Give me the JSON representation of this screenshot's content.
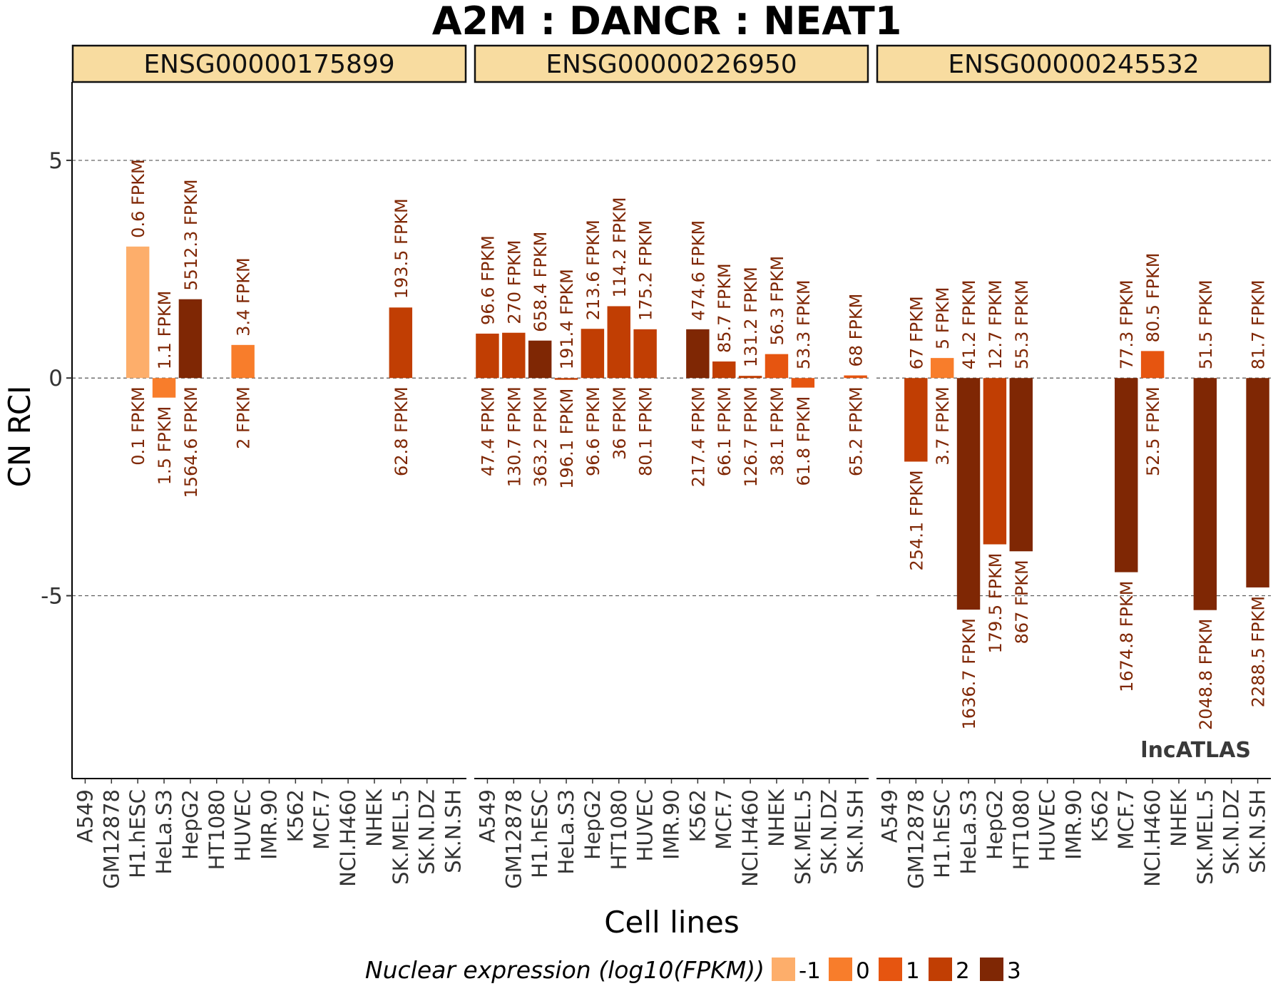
{
  "chart_data": {
    "type": "bar",
    "title": "A2M : DANCR : NEAT1",
    "xlabel": "Cell lines",
    "ylabel": "CN RCI",
    "ylim": [
      -9.2,
      6.8
    ],
    "yticks": [
      5,
      0,
      -5
    ],
    "ytick_labels": [
      "5",
      "0",
      "-5"
    ],
    "grid": "horizontal dashed at y = 5, 0, -5",
    "categories": [
      "A549",
      "GM12878",
      "H1.hESC",
      "HeLa.S3",
      "HepG2",
      "HT1080",
      "HUVEC",
      "IMR.90",
      "K562",
      "MCF.7",
      "NCI.H460",
      "NHEK",
      "SK.MEL.5",
      "SK.N.DZ",
      "SK.N.SH"
    ],
    "watermark": "lncATLAS",
    "legend": {
      "title": "Nuclear expression (log10(FPKM))",
      "placement": "bottom",
      "levels": [
        {
          "label": "-1",
          "color": "#FDAE6B"
        },
        {
          "label": "0",
          "color": "#F87D2B"
        },
        {
          "label": "1",
          "color": "#E65510"
        },
        {
          "label": "2",
          "color": "#C13E03"
        },
        {
          "label": "3",
          "color": "#7F2704"
        }
      ]
    },
    "label_color": "#7F2704",
    "panels": [
      {
        "strip": "ENSG00000175899",
        "bars": [
          {
            "cell": "H1.hESC",
            "value": 3.02,
            "level": 0,
            "pos_label": "0.6 FPKM",
            "neg_label": "0.1 FPKM"
          },
          {
            "cell": "HeLa.S3",
            "value": -0.45,
            "level": 1,
            "pos_label": "1.1 FPKM",
            "neg_label": "1.5 FPKM"
          },
          {
            "cell": "HepG2",
            "value": 1.81,
            "level": 4,
            "pos_label": "5512.3 FPKM",
            "neg_label": "1564.6 FPKM"
          },
          {
            "cell": "HUVEC",
            "value": 0.76,
            "level": 1,
            "pos_label": "3.4 FPKM",
            "neg_label": "2 FPKM"
          },
          {
            "cell": "SK.MEL.5",
            "value": 1.62,
            "level": 3,
            "pos_label": "193.5 FPKM",
            "neg_label": "62.8 FPKM"
          }
        ]
      },
      {
        "strip": "ENSG00000226950",
        "bars": [
          {
            "cell": "A549",
            "value": 1.02,
            "level": 3,
            "pos_label": "96.6 FPKM",
            "neg_label": "47.4 FPKM"
          },
          {
            "cell": "GM12878",
            "value": 1.04,
            "level": 3,
            "pos_label": "270 FPKM",
            "neg_label": "130.7 FPKM"
          },
          {
            "cell": "H1.hESC",
            "value": 0.86,
            "level": 4,
            "pos_label": "658.4 FPKM",
            "neg_label": "363.2 FPKM"
          },
          {
            "cell": "HeLa.S3",
            "value": -0.04,
            "level": 3,
            "pos_label": "191.4 FPKM",
            "neg_label": "196.1 FPKM"
          },
          {
            "cell": "HepG2",
            "value": 1.13,
            "level": 3,
            "pos_label": "213.6 FPKM",
            "neg_label": "96.6 FPKM"
          },
          {
            "cell": "HT1080",
            "value": 1.65,
            "level": 3,
            "pos_label": "114.2 FPKM",
            "neg_label": "36 FPKM"
          },
          {
            "cell": "HUVEC",
            "value": 1.12,
            "level": 3,
            "pos_label": "175.2 FPKM",
            "neg_label": "80.1 FPKM"
          },
          {
            "cell": "K562",
            "value": 1.12,
            "level": 4,
            "pos_label": "474.6 FPKM",
            "neg_label": "217.4 FPKM"
          },
          {
            "cell": "MCF.7",
            "value": 0.38,
            "level": 3,
            "pos_label": "85.7 FPKM",
            "neg_label": "66.1 FPKM"
          },
          {
            "cell": "NCI.H460",
            "value": 0.05,
            "level": 3,
            "pos_label": "131.2 FPKM",
            "neg_label": "126.7 FPKM"
          },
          {
            "cell": "NHEK",
            "value": 0.55,
            "level": 2,
            "pos_label": "56.3 FPKM",
            "neg_label": "38.1 FPKM"
          },
          {
            "cell": "SK.MEL.5",
            "value": -0.22,
            "level": 2,
            "pos_label": "53.3 FPKM",
            "neg_label": "61.8 FPKM"
          },
          {
            "cell": "SK.N.SH",
            "value": 0.06,
            "level": 2,
            "pos_label": "68 FPKM",
            "neg_label": "65.2 FPKM"
          }
        ]
      },
      {
        "strip": "ENSG00000245532",
        "bars": [
          {
            "cell": "GM12878",
            "value": -1.92,
            "level": 3,
            "pos_label": "67 FPKM",
            "neg_label": "254.1 FPKM"
          },
          {
            "cell": "H1.hESC",
            "value": 0.46,
            "level": 1,
            "pos_label": "5 FPKM",
            "neg_label": "3.7 FPKM"
          },
          {
            "cell": "HeLa.S3",
            "value": -5.32,
            "level": 4,
            "pos_label": "41.2 FPKM",
            "neg_label": "1636.7 FPKM"
          },
          {
            "cell": "HepG2",
            "value": -3.82,
            "level": 3,
            "pos_label": "12.7 FPKM",
            "neg_label": "179.5 FPKM"
          },
          {
            "cell": "HT1080",
            "value": -3.98,
            "level": 4,
            "pos_label": "55.3 FPKM",
            "neg_label": "867 FPKM"
          },
          {
            "cell": "MCF.7",
            "value": -4.46,
            "level": 4,
            "pos_label": "77.3 FPKM",
            "neg_label": "1674.8 FPKM"
          },
          {
            "cell": "NCI.H460",
            "value": 0.62,
            "level": 2,
            "pos_label": "80.5 FPKM",
            "neg_label": "52.5 FPKM"
          },
          {
            "cell": "SK.MEL.5",
            "value": -5.33,
            "level": 4,
            "pos_label": "51.5 FPKM",
            "neg_label": "2048.8 FPKM"
          },
          {
            "cell": "SK.N.SH",
            "value": -4.81,
            "level": 4,
            "pos_label": "81.7 FPKM",
            "neg_label": "2288.5 FPKM"
          }
        ]
      }
    ]
  }
}
